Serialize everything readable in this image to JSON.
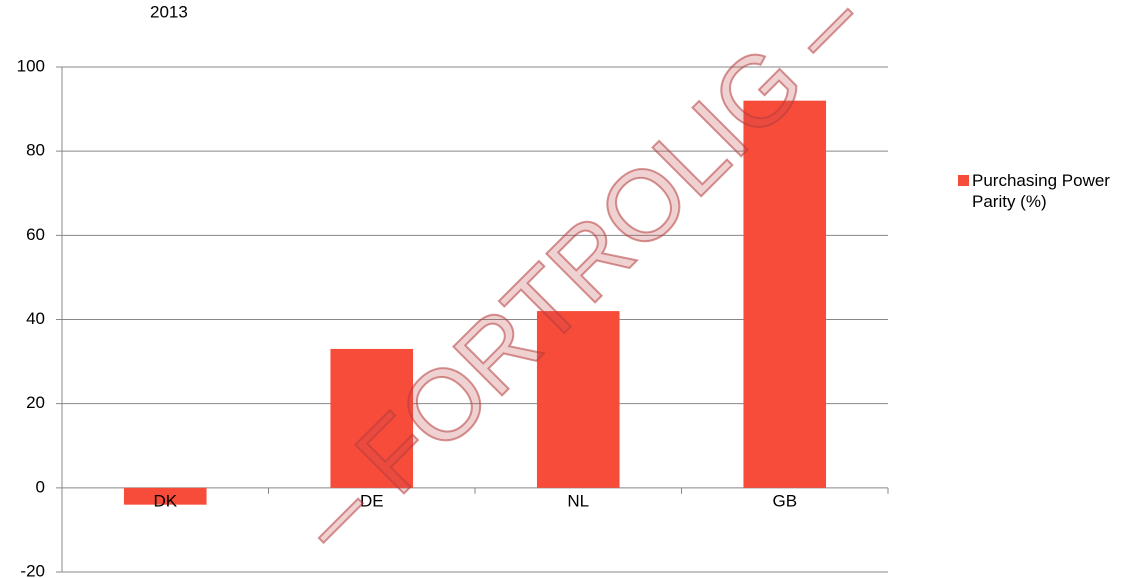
{
  "chart_data": {
    "type": "bar",
    "title": "2013",
    "categories": [
      "DK",
      "DE",
      "NL",
      "GB"
    ],
    "series": [
      {
        "name": "Purchasing Power Parity (%)",
        "color": "#f84c3b",
        "values": [
          -4,
          33,
          42,
          92
        ]
      }
    ],
    "ylim": [
      -20,
      100
    ],
    "yticks": [
      -20,
      0,
      20,
      40,
      60,
      80,
      100
    ],
    "grid": true,
    "legend": "right",
    "watermark": "– FORTROLIG –"
  }
}
